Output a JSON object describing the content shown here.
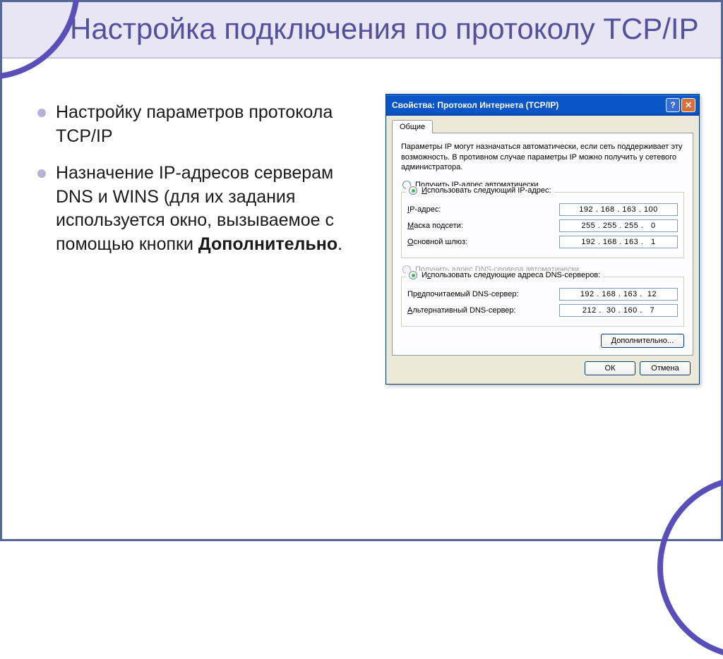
{
  "slide": {
    "title": "Настройка подключения по протоколу TCP/IP",
    "frame_color": "#556699",
    "arc_color": "#5a4fb8",
    "title_bg": "#e8e6f4",
    "title_color": "#53509c",
    "bullet_color": "#b6b2d6",
    "bullets": [
      {
        "text": "Настройку параметров протокола TCP/IP"
      },
      {
        "html": "Назначение IP-адресов серверам DNS и WINS (для их задания используется окно, вызываемое с помощью кнопки <b>Дополнительно</b>.",
        "plain": "Назначение IP-адресов серверам DNS и WINS (для их задания используется окно, вызываемое с помощью кнопки Дополнительно."
      }
    ]
  },
  "dialog": {
    "title": "Свойства: Протокол Интернета (TCP/IP)",
    "tab_label": "Общие",
    "description": "Параметры IP могут назначаться автоматически, если сеть поддерживает эту возможность. В противном случае параметры IP можно получить у сетевого администратора.",
    "radio_auto_ip": "Получить IP-адрес автоматически",
    "radio_manual_ip": "Использовать следующий IP-адрес:",
    "ip_label": "IP-адрес:",
    "ip_value": "192 . 168 . 163 . 100",
    "mask_label": "Маска подсети:",
    "mask_value": "255 . 255 . 255 .   0",
    "gateway_label": "Основной шлюз:",
    "gateway_value": "192 . 168 . 163 .   1",
    "radio_auto_dns": "Получить адрес DNS-сервера автоматически",
    "radio_manual_dns": "Использовать следующие адреса DNS-серверов:",
    "pref_dns_label": "Предпочитаемый DNS-сервер:",
    "pref_dns_value": "192 . 168 . 163 .  12",
    "alt_dns_label": "Альтернативный DNS-сервер:",
    "alt_dns_value": "212 .  30 . 160 .   7",
    "advanced_btn": "Дополнительно...",
    "ok_btn": "ОК",
    "cancel_btn": "Отмена",
    "titlebar_bg": "#0a55c7",
    "dialog_bg": "#ece9d8",
    "input_border": "#7f9db9"
  }
}
